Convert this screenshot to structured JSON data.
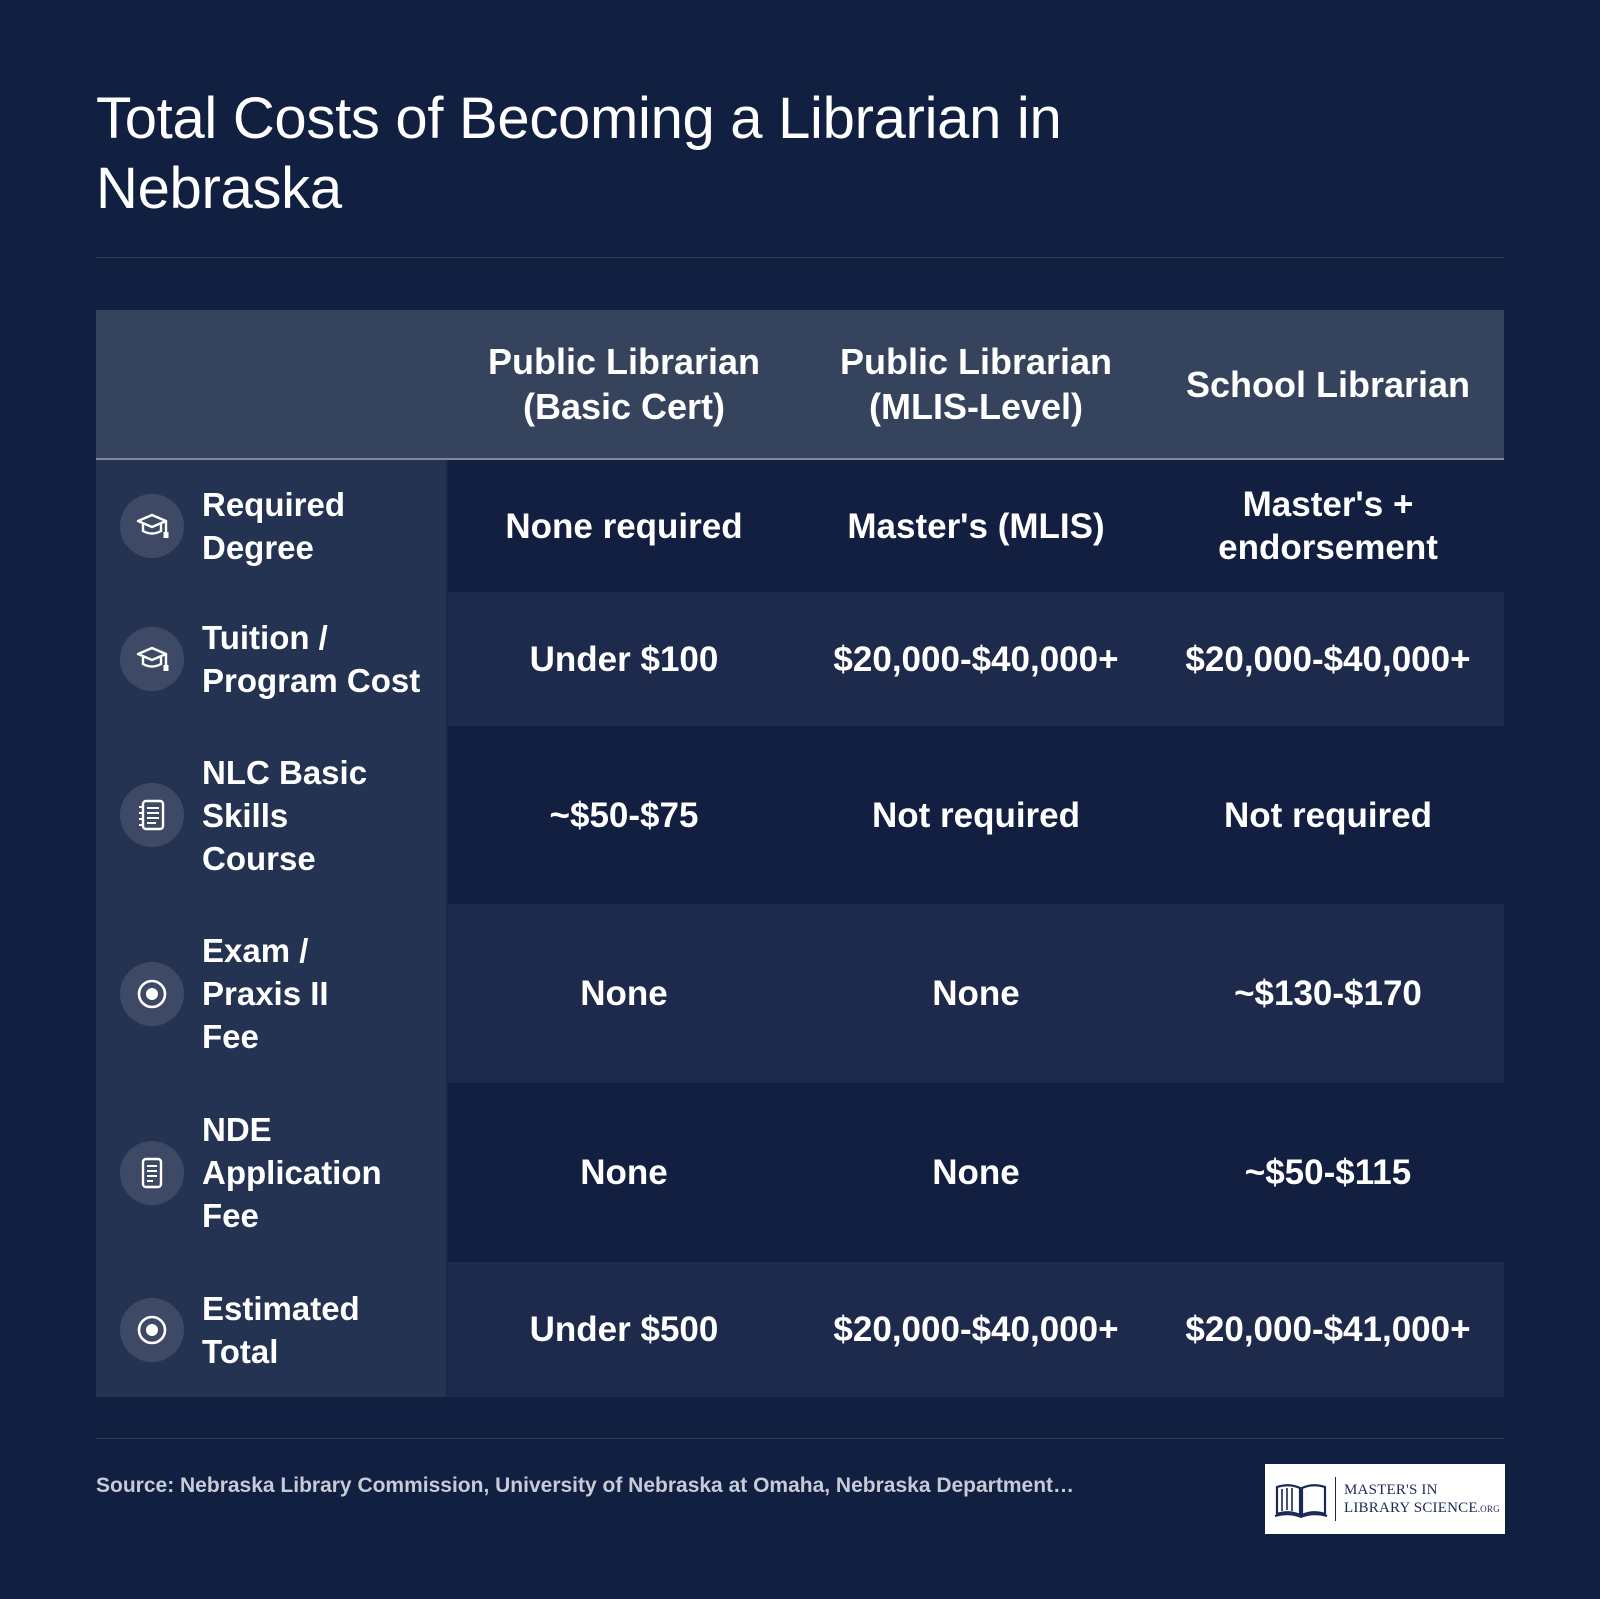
{
  "title": "Total Costs of Becoming a Librarian in Nebraska",
  "columns": [
    "Public Librarian\n(Basic Cert)",
    "Public Librarian\n(MLIS-Level)",
    "School Librarian"
  ],
  "rows": [
    {
      "label": "Required\nDegree",
      "icon": "graduation-cap-icon",
      "values": [
        "None required",
        "Master's (MLIS)",
        "Master's +\nendorsement"
      ]
    },
    {
      "label": "Tuition /\nProgram Cost",
      "icon": "graduation-cap-icon",
      "values": [
        "Under $100",
        "$20,000-$40,000+",
        "$20,000-$40,000+"
      ]
    },
    {
      "label": "NLC Basic\nSkills\nCourse",
      "icon": "notebook-icon",
      "values": [
        "~$50-$75",
        "Not required",
        "Not required"
      ]
    },
    {
      "label": "Exam /\nPraxis II\nFee",
      "icon": "target-icon",
      "values": [
        "None",
        "None",
        "~$130-$170"
      ]
    },
    {
      "label": "NDE\nApplication\nFee",
      "icon": "document-icon",
      "values": [
        "None",
        "None",
        "~$50-$115"
      ]
    },
    {
      "label": "Estimated\nTotal",
      "icon": "target-icon",
      "values": [
        "Under $500",
        "$20,000-$40,000+",
        "$20,000-$41,000+"
      ]
    }
  ],
  "source": "Source: Nebraska Library Commission, University of Nebraska at Omaha, Nebraska Department…",
  "logo": {
    "line1": "MASTER'S IN",
    "line2": "LIBRARY SCIENCE",
    "suffix": ".ORG"
  },
  "colors": {
    "background": "#111f41",
    "header": "#36435d",
    "label_column": "#253353",
    "row_dark": "#121f41",
    "row_light": "#1d2a4b"
  }
}
